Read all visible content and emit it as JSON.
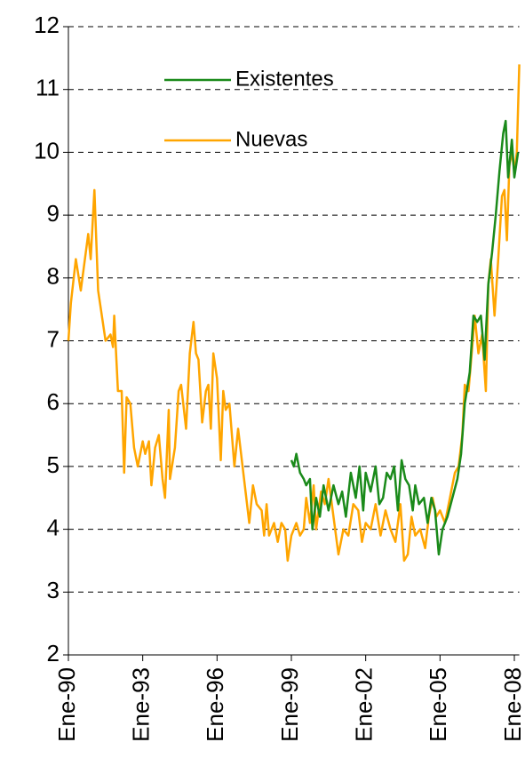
{
  "chart_data": {
    "type": "line",
    "xlim": [
      1990,
      2008.2
    ],
    "xticks": [
      {
        "value": 1990,
        "label": "Ene-90"
      },
      {
        "value": 1993,
        "label": "Ene-93"
      },
      {
        "value": 1996,
        "label": "Ene-96"
      },
      {
        "value": 1999,
        "label": "Ene-99"
      },
      {
        "value": 2002,
        "label": "Ene-02"
      },
      {
        "value": 2005,
        "label": "Ene-05"
      },
      {
        "value": 2008,
        "label": "Ene-08"
      }
    ],
    "ylim": [
      2,
      12
    ],
    "yticks": [
      2,
      3,
      4,
      5,
      6,
      7,
      8,
      9,
      10,
      11,
      12
    ],
    "grid": true,
    "legend": "top",
    "series": [
      {
        "name": "Existentes",
        "color": "#1a8a1a",
        "x": [
          1999.0,
          1999.1,
          1999.2,
          1999.35,
          1999.5,
          1999.6,
          1999.75,
          1999.85,
          2000.0,
          2000.15,
          2000.3,
          2000.5,
          2000.7,
          2000.9,
          2001.05,
          2001.2,
          2001.4,
          2001.6,
          2001.75,
          2001.9,
          2002.0,
          2002.2,
          2002.4,
          2002.55,
          2002.7,
          2002.85,
          2003.0,
          2003.15,
          2003.3,
          2003.45,
          2003.6,
          2003.75,
          2003.9,
          2004.0,
          2004.15,
          2004.35,
          2004.5,
          2004.65,
          2004.8,
          2004.95,
          2005.1,
          2005.3,
          2005.5,
          2005.7,
          2005.85,
          2006.0,
          2006.2,
          2006.35,
          2006.5,
          2006.65,
          2006.8,
          2006.95,
          2007.1,
          2007.25,
          2007.4,
          2007.55,
          2007.65,
          2007.75,
          2007.9,
          2008.0,
          2008.15
        ],
        "values": [
          5.1,
          5.0,
          5.2,
          4.9,
          4.8,
          4.7,
          4.8,
          4.0,
          4.5,
          4.2,
          4.7,
          4.3,
          4.7,
          4.4,
          4.6,
          4.2,
          4.9,
          4.5,
          5.0,
          4.3,
          4.9,
          4.6,
          5.0,
          4.4,
          4.5,
          4.9,
          4.8,
          5.0,
          4.3,
          5.1,
          4.8,
          4.7,
          4.3,
          4.7,
          4.4,
          4.5,
          4.1,
          4.5,
          4.3,
          3.6,
          4.0,
          4.2,
          4.5,
          4.8,
          5.2,
          6.0,
          6.5,
          7.4,
          7.3,
          7.4,
          6.7,
          7.9,
          8.4,
          9.0,
          9.7,
          10.3,
          10.5,
          9.6,
          10.2,
          9.6,
          10.0
        ]
      },
      {
        "name": "Nuevas",
        "color": "#ffa500",
        "x": [
          1990.0,
          1990.1,
          1990.3,
          1990.5,
          1990.7,
          1990.8,
          1990.9,
          1991.05,
          1991.2,
          1991.5,
          1991.7,
          1991.8,
          1991.85,
          1992.0,
          1992.15,
          1992.25,
          1992.35,
          1992.5,
          1992.65,
          1992.8,
          1993.0,
          1993.1,
          1993.25,
          1993.35,
          1993.5,
          1993.65,
          1993.8,
          1993.9,
          1994.05,
          1994.1,
          1994.3,
          1994.45,
          1994.55,
          1994.75,
          1994.9,
          1995.05,
          1995.15,
          1995.25,
          1995.4,
          1995.55,
          1995.65,
          1995.75,
          1995.85,
          1996.0,
          1996.15,
          1996.25,
          1996.35,
          1996.5,
          1996.7,
          1996.85,
          1997.0,
          1997.15,
          1997.3,
          1997.45,
          1997.6,
          1997.8,
          1997.9,
          1998.0,
          1998.1,
          1998.3,
          1998.45,
          1998.6,
          1998.75,
          1998.85,
          1999.0,
          1999.2,
          1999.35,
          1999.5,
          1999.6,
          1999.75,
          1999.9,
          2000.0,
          2000.2,
          2000.35,
          2000.5,
          2000.7,
          2000.9,
          2001.1,
          2001.3,
          2001.5,
          2001.7,
          2001.85,
          2002.0,
          2002.2,
          2002.4,
          2002.6,
          2002.8,
          2003.0,
          2003.2,
          2003.4,
          2003.55,
          2003.7,
          2003.85,
          2004.0,
          2004.2,
          2004.4,
          2004.55,
          2004.7,
          2004.85,
          2005.0,
          2005.2,
          2005.4,
          2005.6,
          2005.75,
          2005.9,
          2006.0,
          2006.15,
          2006.3,
          2006.4,
          2006.55,
          2006.7,
          2006.85,
          2006.95,
          2007.05,
          2007.2,
          2007.35,
          2007.5,
          2007.6,
          2007.7,
          2007.8,
          2007.9,
          2008.0,
          2008.1,
          2008.2
        ],
        "values": [
          7.0,
          7.6,
          8.3,
          7.8,
          8.4,
          8.7,
          8.3,
          9.4,
          7.8,
          7.0,
          7.1,
          6.9,
          7.4,
          6.2,
          6.2,
          4.9,
          6.1,
          6.0,
          5.3,
          5.0,
          5.4,
          5.2,
          5.4,
          4.7,
          5.3,
          5.5,
          4.8,
          4.5,
          5.9,
          4.8,
          5.3,
          6.2,
          6.3,
          5.6,
          6.8,
          7.3,
          6.8,
          6.7,
          5.7,
          6.2,
          6.3,
          5.6,
          6.8,
          6.4,
          5.1,
          6.2,
          5.9,
          6.0,
          5.0,
          5.6,
          5.1,
          4.6,
          4.1,
          4.7,
          4.4,
          4.3,
          3.9,
          4.4,
          3.9,
          4.1,
          3.8,
          4.1,
          4.0,
          3.5,
          3.9,
          4.1,
          3.9,
          4.0,
          4.5,
          4.1,
          4.7,
          4.0,
          4.6,
          4.4,
          4.8,
          4.2,
          3.6,
          4.0,
          3.9,
          4.4,
          4.3,
          3.8,
          4.1,
          4.0,
          4.4,
          3.9,
          4.3,
          4.0,
          3.8,
          4.4,
          3.5,
          3.6,
          4.2,
          3.9,
          4.0,
          3.7,
          4.2,
          4.5,
          4.2,
          4.3,
          4.1,
          4.5,
          4.9,
          5.0,
          5.5,
          6.3,
          6.2,
          6.9,
          7.4,
          6.8,
          7.1,
          6.2,
          7.9,
          8.3,
          7.4,
          8.3,
          9.3,
          9.4,
          8.6,
          9.8,
          10.0,
          9.7,
          10.0,
          11.4
        ]
      }
    ]
  }
}
